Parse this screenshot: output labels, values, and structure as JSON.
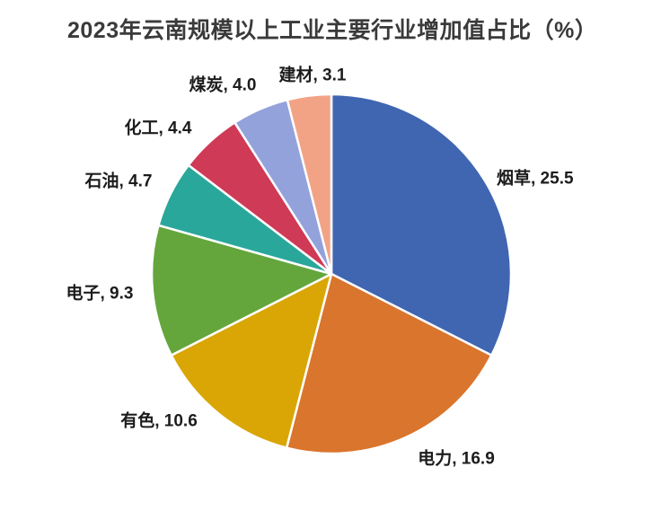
{
  "chart_data": {
    "type": "pie",
    "title": "2023年云南规模以上工业主要行业增加值占比（%）",
    "categories": [
      "烟草",
      "电力",
      "有色",
      "电子",
      "石油",
      "化工",
      "煤炭",
      "建材"
    ],
    "values": [
      25.5,
      16.9,
      10.6,
      9.3,
      4.7,
      4.4,
      4.0,
      3.1
    ],
    "labels": [
      "烟草, 25.5",
      "电力, 16.9",
      "有色, 10.6",
      "电子, 9.3",
      "石油, 4.7",
      "化工, 4.4",
      "煤炭, 4.0",
      "建材, 3.1"
    ],
    "colors": [
      "#4066B2",
      "#D9752C",
      "#D9A605",
      "#64A63C",
      "#2AA79B",
      "#CF3A57",
      "#93A2DB",
      "#F2A386"
    ],
    "slice_border_color": "#FFFFFF",
    "label_text_color": "#1C1C1C",
    "title_color": "#3A3A3A",
    "start_angle_deg": 0,
    "direction": "clockwise",
    "legend_position": "none",
    "label_style": "outside-end"
  }
}
